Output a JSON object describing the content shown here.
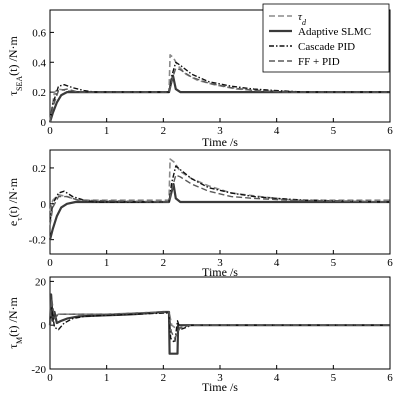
{
  "legend": {
    "placement": "top-right",
    "entries": [
      {
        "series": "ref",
        "label": "τ",
        "sub": "d"
      },
      {
        "series": "slmc",
        "label": "Adaptive SLMC",
        "sub": ""
      },
      {
        "series": "cpid",
        "label": "Cascade PID",
        "sub": ""
      },
      {
        "series": "ffpid",
        "label": "FF + PID",
        "sub": ""
      }
    ]
  },
  "styles": {
    "ref": {
      "color": "#8a8a8a",
      "dash": "6,3",
      "width": 1.6
    },
    "slmc": {
      "color": "#3a3a3a",
      "dash": "",
      "width": 2.2
    },
    "cpid": {
      "color": "#111111",
      "dash": "5,2,1.5,2",
      "width": 1.4
    },
    "ffpid": {
      "color": "#5a5a5a",
      "dash": "6,3",
      "width": 1.4
    }
  },
  "chart_data": [
    {
      "type": "line",
      "xlabel": "Time /s",
      "ylabel": {
        "main": "τ",
        "sub": "SEA",
        "rest": "(t) /N·m"
      },
      "xlim": [
        0,
        6
      ],
      "ylim": [
        0,
        0.75
      ],
      "xticks": [
        "0",
        "1",
        "2",
        "3",
        "4",
        "5",
        "6"
      ],
      "yticks": [
        "0",
        "0.2",
        "0.4",
        "0.6"
      ],
      "grid": false,
      "series": [
        {
          "key": "ref",
          "name": "τd",
          "x": [
            0,
            0.03,
            0.08,
            0.15,
            0.3,
            0.5,
            2.1,
            2.12,
            2.18,
            2.25,
            2.4,
            2.6,
            2.9,
            3.3,
            3.8,
            4.5,
            6
          ],
          "y": [
            0,
            0.08,
            0.2,
            0.22,
            0.21,
            0.2,
            0.2,
            0.45,
            0.43,
            0.38,
            0.32,
            0.28,
            0.25,
            0.22,
            0.21,
            0.2,
            0.2
          ]
        },
        {
          "key": "slmc",
          "name": "Adaptive SLMC",
          "x": [
            0,
            0.05,
            0.12,
            0.2,
            0.3,
            0.45,
            0.6,
            2.1,
            2.13,
            2.17,
            2.22,
            2.3,
            6
          ],
          "y": [
            0,
            0.06,
            0.13,
            0.18,
            0.2,
            0.2,
            0.2,
            0.2,
            0.25,
            0.31,
            0.22,
            0.2,
            0.2
          ]
        },
        {
          "key": "cpid",
          "name": "Cascade PID",
          "x": [
            0,
            0.05,
            0.15,
            0.25,
            0.4,
            0.6,
            0.8,
            2.1,
            2.15,
            2.22,
            2.3,
            2.5,
            2.8,
            3.2,
            3.6,
            4.0,
            4.5,
            6
          ],
          "y": [
            0,
            0.12,
            0.24,
            0.25,
            0.23,
            0.21,
            0.2,
            0.2,
            0.31,
            0.4,
            0.38,
            0.32,
            0.27,
            0.24,
            0.22,
            0.21,
            0.2,
            0.2
          ]
        },
        {
          "key": "ffpid",
          "name": "FF + PID",
          "x": [
            0,
            0.05,
            0.15,
            0.3,
            0.5,
            2.1,
            2.15,
            2.22,
            2.3,
            2.5,
            2.8,
            3.2,
            3.6,
            4.2,
            6
          ],
          "y": [
            0,
            0.1,
            0.21,
            0.22,
            0.2,
            0.2,
            0.28,
            0.36,
            0.35,
            0.3,
            0.26,
            0.23,
            0.21,
            0.2,
            0.2
          ]
        }
      ]
    },
    {
      "type": "line",
      "xlabel": "Time /s",
      "ylabel": {
        "main": "e",
        "sub": "τ",
        "rest": "(t) /N·m"
      },
      "xlim": [
        0,
        6
      ],
      "ylim": [
        -0.28,
        0.3
      ],
      "xticks": [
        "0",
        "1",
        "2",
        "3",
        "4",
        "5",
        "6"
      ],
      "yticks": [
        "-0.2",
        "0",
        "0.2"
      ],
      "grid": false,
      "series": [
        {
          "key": "ref",
          "name": "τd",
          "x": [
            0,
            0.05,
            0.15,
            0.3,
            0.5,
            2.1,
            2.12,
            2.2,
            2.3,
            2.5,
            2.8,
            3.2,
            3.7,
            4.3,
            6
          ],
          "y": [
            -0.04,
            0.02,
            0.05,
            0.04,
            0.02,
            0.02,
            0.25,
            0.23,
            0.18,
            0.14,
            0.1,
            0.06,
            0.04,
            0.02,
            0.02
          ]
        },
        {
          "key": "slmc",
          "name": "Adaptive SLMC",
          "x": [
            0,
            0.05,
            0.12,
            0.2,
            0.3,
            0.45,
            0.6,
            2.1,
            2.14,
            2.18,
            2.22,
            2.3,
            6
          ],
          "y": [
            -0.2,
            -0.14,
            -0.07,
            -0.02,
            0.0,
            0.01,
            0.01,
            0.01,
            0.06,
            0.11,
            0.03,
            0.01,
            0.01
          ]
        },
        {
          "key": "cpid",
          "name": "Cascade PID",
          "x": [
            0,
            0.05,
            0.15,
            0.25,
            0.4,
            0.6,
            0.8,
            2.1,
            2.15,
            2.22,
            2.3,
            2.5,
            2.8,
            3.2,
            3.6,
            4.0,
            4.5,
            6
          ],
          "y": [
            -0.1,
            0.0,
            0.06,
            0.07,
            0.04,
            0.02,
            0.01,
            0.01,
            0.12,
            0.21,
            0.19,
            0.14,
            0.09,
            0.06,
            0.04,
            0.03,
            0.02,
            0.01
          ]
        },
        {
          "key": "ffpid",
          "name": "FF + PID",
          "x": [
            0,
            0.05,
            0.15,
            0.3,
            0.5,
            2.1,
            2.15,
            2.22,
            2.3,
            2.5,
            2.8,
            3.2,
            3.6,
            4.2,
            6
          ],
          "y": [
            -0.12,
            -0.02,
            0.04,
            0.04,
            0.02,
            0.01,
            0.08,
            0.16,
            0.15,
            0.11,
            0.07,
            0.04,
            0.03,
            0.02,
            0.01
          ]
        }
      ]
    },
    {
      "type": "line",
      "xlabel": "Time /s",
      "ylabel": {
        "main": "τ",
        "sub": "M",
        "rest": "(t) /N·m"
      },
      "xlim": [
        0,
        6
      ],
      "ylim": [
        -20,
        22
      ],
      "xticks": [
        "0",
        "1",
        "2",
        "3",
        "4",
        "5",
        "6"
      ],
      "yticks": [
        "-20",
        "0",
        "20"
      ],
      "grid": false,
      "series": [
        {
          "key": "ref",
          "name": "τd",
          "x": [
            0,
            0.03,
            0.08,
            0.15,
            0.3,
            1.0,
            2.0,
            2.1,
            2.15,
            2.25,
            2.4,
            3,
            6
          ],
          "y": [
            0,
            10,
            4,
            5,
            5,
            5,
            6,
            6,
            0,
            -2,
            0,
            0,
            0
          ]
        },
        {
          "key": "slmc",
          "name": "Adaptive SLMC",
          "x": [
            0,
            0.02,
            0.05,
            0.08,
            0.12,
            0.2,
            0.3,
            0.5,
            1.0,
            1.5,
            2.0,
            2.1,
            2.11,
            2.2,
            2.25,
            2.26,
            2.4,
            3,
            4,
            5,
            6
          ],
          "y": [
            0,
            14,
            2,
            6,
            1,
            2,
            3,
            4,
            4.5,
            5,
            6,
            6,
            -13,
            -13,
            -13,
            0,
            0,
            0,
            0,
            0,
            0
          ]
        },
        {
          "key": "cpid",
          "name": "Cascade PID",
          "x": [
            0,
            0.03,
            0.08,
            0.15,
            0.25,
            0.4,
            0.6,
            1.0,
            1.5,
            2.0,
            2.1,
            2.13,
            2.2,
            2.25,
            2.3,
            2.5,
            3,
            6
          ],
          "y": [
            0,
            8,
            -1,
            -2,
            1,
            3,
            4,
            4.5,
            5,
            5.5,
            5.5,
            -6,
            -8,
            2,
            -2,
            0,
            0,
            0
          ]
        },
        {
          "key": "ffpid",
          "name": "FF + PID",
          "x": [
            0,
            0.03,
            0.08,
            0.15,
            0.3,
            0.6,
            1.0,
            1.5,
            2.0,
            2.1,
            2.14,
            2.2,
            2.3,
            2.5,
            3,
            6
          ],
          "y": [
            0,
            12,
            3,
            5,
            5,
            5,
            5,
            5.5,
            6,
            6,
            -3,
            -6,
            -1,
            0,
            0,
            0
          ]
        }
      ]
    }
  ]
}
